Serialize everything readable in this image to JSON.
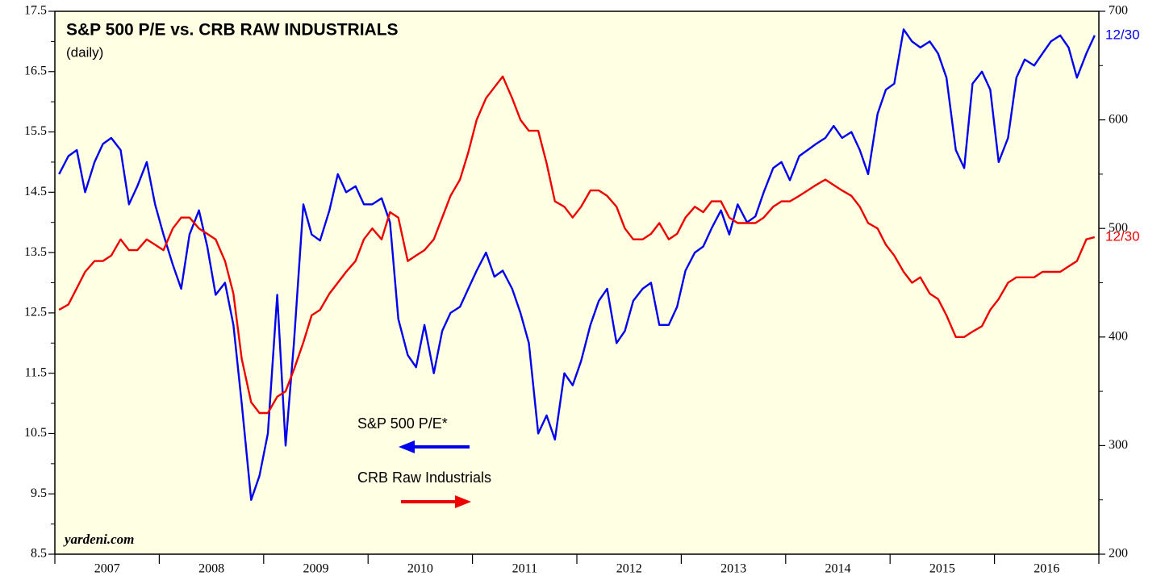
{
  "chart_data": {
    "type": "line",
    "title": "S&P 500 P/E vs. CRB RAW INDUSTRIALS",
    "subtitle": "(daily)",
    "source": "yardeni.com",
    "xlim": [
      2007,
      2017
    ],
    "xticks": [
      {
        "value": 2007.5,
        "label": "2007"
      },
      {
        "value": 2008.5,
        "label": "2008"
      },
      {
        "value": 2009.5,
        "label": "2009"
      },
      {
        "value": 2010.5,
        "label": "2010"
      },
      {
        "value": 2011.5,
        "label": "2011"
      },
      {
        "value": 2012.5,
        "label": "2012"
      },
      {
        "value": 2013.5,
        "label": "2013"
      },
      {
        "value": 2014.5,
        "label": "2014"
      },
      {
        "value": 2015.5,
        "label": "2015"
      },
      {
        "value": 2016.5,
        "label": "2016"
      }
    ],
    "ylim": [
      8.5,
      17.5
    ],
    "yticks": [
      8.5,
      9.5,
      10.5,
      11.5,
      12.5,
      13.5,
      14.5,
      15.5,
      16.5,
      17.5
    ],
    "y2lim": [
      200,
      700
    ],
    "y2ticks": [
      200,
      300,
      400,
      500,
      600,
      700
    ],
    "x": [
      2007.04,
      2007.13,
      2007.21,
      2007.29,
      2007.38,
      2007.46,
      2007.54,
      2007.63,
      2007.71,
      2007.79,
      2007.88,
      2007.96,
      2008.04,
      2008.13,
      2008.21,
      2008.29,
      2008.38,
      2008.46,
      2008.54,
      2008.63,
      2008.71,
      2008.79,
      2008.88,
      2008.96,
      2009.04,
      2009.13,
      2009.21,
      2009.29,
      2009.38,
      2009.46,
      2009.54,
      2009.63,
      2009.71,
      2009.79,
      2009.88,
      2009.96,
      2010.04,
      2010.13,
      2010.21,
      2010.29,
      2010.38,
      2010.46,
      2010.54,
      2010.63,
      2010.71,
      2010.79,
      2010.88,
      2010.96,
      2011.04,
      2011.13,
      2011.21,
      2011.29,
      2011.38,
      2011.46,
      2011.54,
      2011.63,
      2011.71,
      2011.79,
      2011.88,
      2011.96,
      2012.04,
      2012.13,
      2012.21,
      2012.29,
      2012.38,
      2012.46,
      2012.54,
      2012.63,
      2012.71,
      2012.79,
      2012.88,
      2012.96,
      2013.04,
      2013.13,
      2013.21,
      2013.29,
      2013.38,
      2013.46,
      2013.54,
      2013.63,
      2013.71,
      2013.79,
      2013.88,
      2013.96,
      2014.04,
      2014.13,
      2014.21,
      2014.29,
      2014.38,
      2014.46,
      2014.54,
      2014.63,
      2014.71,
      2014.79,
      2014.88,
      2014.96,
      2015.04,
      2015.13,
      2015.21,
      2015.29,
      2015.38,
      2015.46,
      2015.54,
      2015.63,
      2015.71,
      2015.79,
      2015.88,
      2015.96,
      2016.04,
      2016.13,
      2016.21,
      2016.29,
      2016.38,
      2016.46,
      2016.54,
      2016.63,
      2016.71,
      2016.79,
      2016.88,
      2016.96
    ],
    "series": [
      {
        "name": "S&P 500 P/E*",
        "color": "#0000ee",
        "axis": "y",
        "end_label": "12/30",
        "values": [
          14.8,
          15.1,
          15.2,
          14.5,
          15.0,
          15.3,
          15.4,
          15.2,
          14.3,
          14.6,
          15.0,
          14.3,
          13.8,
          13.3,
          12.9,
          13.8,
          14.2,
          13.6,
          12.8,
          13.0,
          12.3,
          11.0,
          9.4,
          9.8,
          10.5,
          12.8,
          10.3,
          12.0,
          14.3,
          13.8,
          13.7,
          14.2,
          14.8,
          14.5,
          14.6,
          14.3,
          14.3,
          14.4,
          14.0,
          12.4,
          11.8,
          11.6,
          12.3,
          11.5,
          12.2,
          12.5,
          12.6,
          12.9,
          13.2,
          13.5,
          13.1,
          13.2,
          12.9,
          12.5,
          12.0,
          10.5,
          10.8,
          10.4,
          11.5,
          11.3,
          11.7,
          12.3,
          12.7,
          12.9,
          12.0,
          12.2,
          12.7,
          12.9,
          13.0,
          12.3,
          12.3,
          12.6,
          13.2,
          13.5,
          13.6,
          13.9,
          14.2,
          13.8,
          14.3,
          14.0,
          14.1,
          14.5,
          14.9,
          15.0,
          14.7,
          15.1,
          15.2,
          15.3,
          15.4,
          15.6,
          15.4,
          15.5,
          15.2,
          14.8,
          15.8,
          16.2,
          16.3,
          17.2,
          17.0,
          16.9,
          17.0,
          16.8,
          16.4,
          15.2,
          14.9,
          16.3,
          16.5,
          16.2,
          15.0,
          15.4,
          16.4,
          16.7,
          16.6,
          16.8,
          17.0,
          17.1,
          16.9,
          16.4,
          16.8,
          17.1
        ]
      },
      {
        "name": "CRB Raw Industrials",
        "color": "#ee0000",
        "axis": "y2",
        "end_label": "12/30",
        "values": [
          425,
          430,
          445,
          460,
          470,
          470,
          475,
          490,
          480,
          480,
          490,
          485,
          480,
          500,
          510,
          510,
          500,
          495,
          490,
          470,
          440,
          380,
          340,
          330,
          330,
          345,
          350,
          370,
          395,
          420,
          425,
          440,
          450,
          460,
          470,
          490,
          500,
          490,
          515,
          510,
          470,
          475,
          480,
          490,
          510,
          530,
          545,
          570,
          600,
          620,
          630,
          640,
          620,
          600,
          590,
          590,
          560,
          525,
          520,
          510,
          520,
          535,
          535,
          530,
          520,
          500,
          490,
          490,
          495,
          505,
          490,
          495,
          510,
          520,
          515,
          525,
          525,
          510,
          505,
          505,
          505,
          510,
          520,
          525,
          525,
          530,
          535,
          540,
          545,
          540,
          535,
          530,
          520,
          505,
          500,
          485,
          475,
          460,
          450,
          455,
          440,
          435,
          420,
          400,
          400,
          405,
          410,
          425,
          435,
          450,
          455,
          455,
          455,
          460,
          460,
          460,
          465,
          470,
          490,
          492
        ]
      }
    ],
    "grid": false
  }
}
